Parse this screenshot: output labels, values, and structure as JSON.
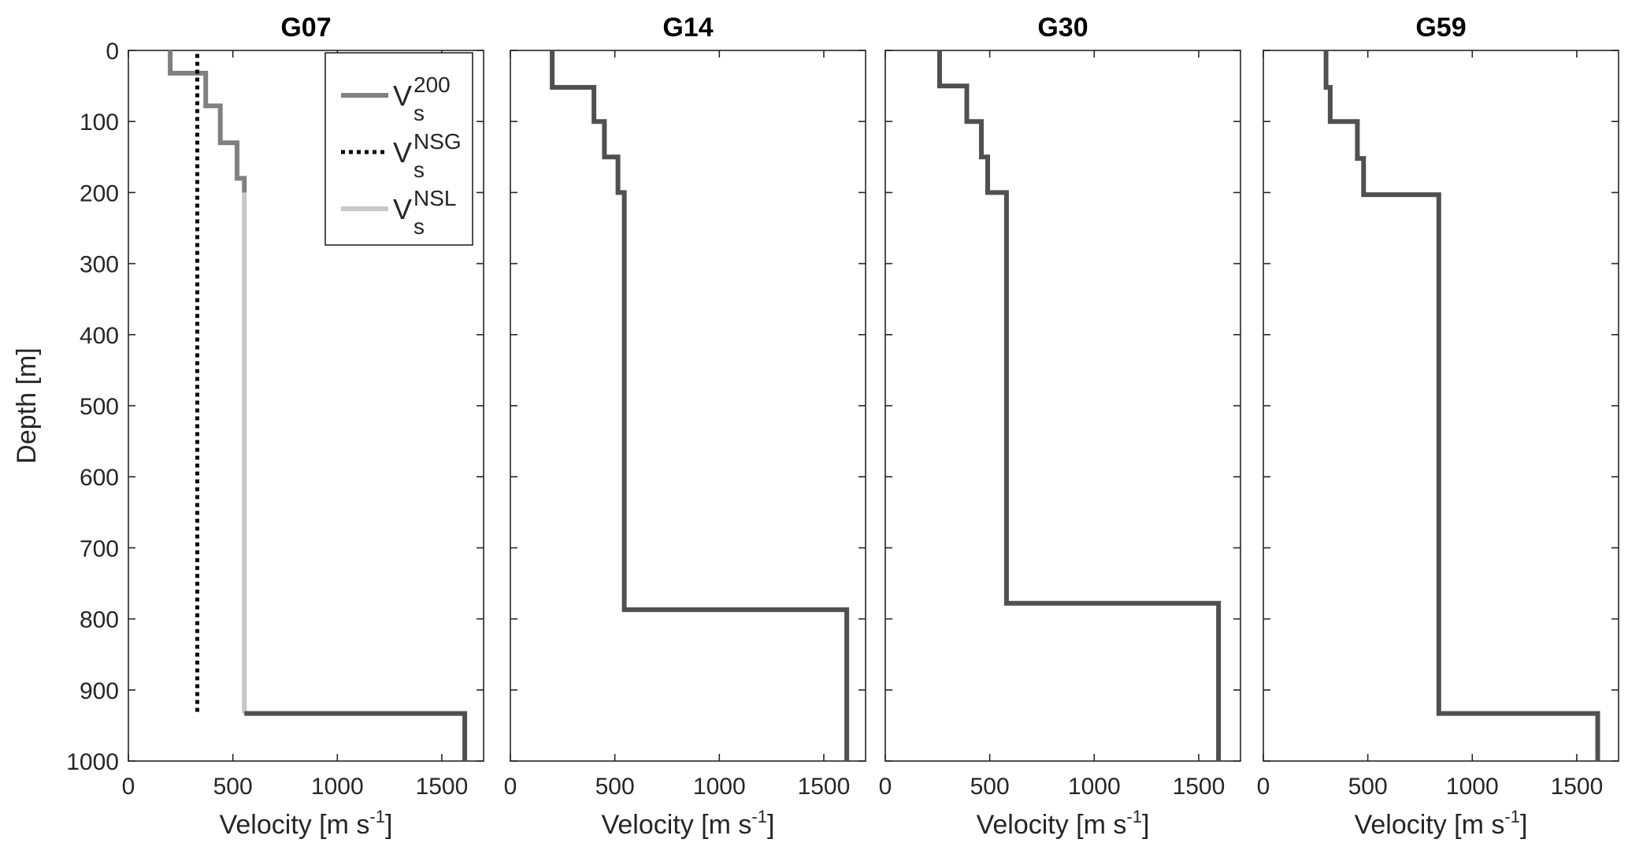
{
  "figure": {
    "ylabel": "Depth [m]",
    "xlabel_main": "Velocity [m s",
    "xlabel_sup": "-1",
    "xlabel_close": "]"
  },
  "legend": {
    "entries": [
      {
        "base": "V",
        "sub": "s",
        "sup": "200",
        "style": "solid",
        "color": "#808080"
      },
      {
        "base": "V",
        "sub": "s",
        "sup": "NSG",
        "style": "dotted",
        "color": "#000000"
      },
      {
        "base": "V",
        "sub": "s",
        "sup": "NSL",
        "style": "solid",
        "color": "#c8c8c8"
      }
    ]
  },
  "chart_data": [
    {
      "type": "line",
      "title": "G07",
      "xlim": [
        0,
        1700
      ],
      "ylim": [
        0,
        1000
      ],
      "y_reversed": true,
      "xticks": [
        0,
        500,
        1000,
        1500
      ],
      "yticks": [
        0,
        100,
        200,
        300,
        400,
        500,
        600,
        700,
        800,
        900,
        1000
      ],
      "show_y_ticklabels": true,
      "show_ylabel": true,
      "show_legend": true,
      "legend_position": "top-right",
      "series": [
        {
          "name": "Vs200",
          "color": "#808080",
          "style": "solid",
          "points": [
            [
              200,
              0
            ],
            [
              200,
              32
            ],
            [
              370,
              32
            ],
            [
              370,
              78
            ],
            [
              440,
              78
            ],
            [
              440,
              130
            ],
            [
              520,
              130
            ],
            [
              520,
              180
            ],
            [
              555,
              180
            ],
            [
              555,
              200
            ]
          ]
        },
        {
          "name": "VsNSG",
          "color": "#000000",
          "style": "dotted",
          "points": [
            [
              330,
              5
            ],
            [
              330,
              935
            ]
          ]
        },
        {
          "name": "VsNSL",
          "color": "#c8c8c8",
          "style": "solid",
          "points": [
            [
              555,
              200
            ],
            [
              555,
              933
            ]
          ]
        },
        {
          "name": "",
          "color": "#505050",
          "style": "solid",
          "points": [
            [
              555,
              933
            ],
            [
              1610,
              933
            ],
            [
              1610,
              1000
            ]
          ]
        }
      ]
    },
    {
      "type": "line",
      "title": "G14",
      "xlim": [
        0,
        1700
      ],
      "ylim": [
        0,
        1000
      ],
      "y_reversed": true,
      "xticks": [
        0,
        500,
        1000,
        1500
      ],
      "yticks": [
        0,
        100,
        200,
        300,
        400,
        500,
        600,
        700,
        800,
        900,
        1000
      ],
      "show_y_ticklabels": false,
      "series": [
        {
          "name": "",
          "color": "#505050",
          "style": "solid",
          "points": [
            [
              200,
              0
            ],
            [
              200,
              52
            ],
            [
              400,
              52
            ],
            [
              400,
              100
            ],
            [
              450,
              100
            ],
            [
              450,
              150
            ],
            [
              515,
              150
            ],
            [
              515,
              200
            ],
            [
              545,
              200
            ],
            [
              545,
              787
            ],
            [
              1610,
              787
            ],
            [
              1610,
              1000
            ]
          ]
        }
      ]
    },
    {
      "type": "line",
      "title": "G30",
      "xlim": [
        0,
        1700
      ],
      "ylim": [
        0,
        1000
      ],
      "y_reversed": true,
      "xticks": [
        0,
        500,
        1000,
        1500
      ],
      "yticks": [
        0,
        100,
        200,
        300,
        400,
        500,
        600,
        700,
        800,
        900,
        1000
      ],
      "show_y_ticklabels": false,
      "series": [
        {
          "name": "",
          "color": "#505050",
          "style": "solid",
          "points": [
            [
              260,
              0
            ],
            [
              260,
              50
            ],
            [
              390,
              50
            ],
            [
              390,
              100
            ],
            [
              460,
              100
            ],
            [
              460,
              150
            ],
            [
              490,
              150
            ],
            [
              490,
              200
            ],
            [
              580,
              200
            ],
            [
              580,
              778
            ],
            [
              1595,
              778
            ],
            [
              1595,
              1000
            ]
          ]
        }
      ]
    },
    {
      "type": "line",
      "title": "G59",
      "xlim": [
        0,
        1700
      ],
      "ylim": [
        0,
        1000
      ],
      "y_reversed": true,
      "xticks": [
        0,
        500,
        1000,
        1500
      ],
      "yticks": [
        0,
        100,
        200,
        300,
        400,
        500,
        600,
        700,
        800,
        900,
        1000
      ],
      "show_y_ticklabels": false,
      "series": [
        {
          "name": "",
          "color": "#505050",
          "style": "solid",
          "points": [
            [
              300,
              0
            ],
            [
              300,
              52
            ],
            [
              320,
              52
            ],
            [
              320,
              100
            ],
            [
              450,
              100
            ],
            [
              450,
              152
            ],
            [
              480,
              152
            ],
            [
              480,
              203
            ],
            [
              840,
              203
            ],
            [
              840,
              933
            ],
            [
              1600,
              933
            ],
            [
              1600,
              1000
            ]
          ]
        }
      ]
    }
  ]
}
